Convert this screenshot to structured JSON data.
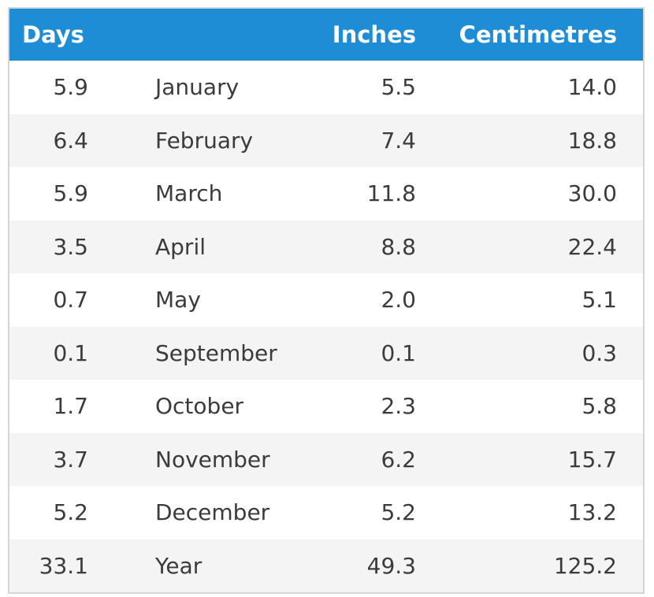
{
  "table": {
    "columns": [
      {
        "label": "Days"
      },
      {
        "label": ""
      },
      {
        "label": "Inches"
      },
      {
        "label": "Centimetres"
      }
    ],
    "rows": [
      {
        "days": "5.9",
        "month": "January",
        "inches": "5.5",
        "centimetres": "14.0"
      },
      {
        "days": "6.4",
        "month": "February",
        "inches": "7.4",
        "centimetres": "18.8"
      },
      {
        "days": "5.9",
        "month": "March",
        "inches": "11.8",
        "centimetres": "30.0"
      },
      {
        "days": "3.5",
        "month": "April",
        "inches": "8.8",
        "centimetres": "22.4"
      },
      {
        "days": "0.7",
        "month": "May",
        "inches": "2.0",
        "centimetres": "5.1"
      },
      {
        "days": "0.1",
        "month": "September",
        "inches": "0.1",
        "centimetres": "0.3"
      },
      {
        "days": "1.7",
        "month": "October",
        "inches": "2.3",
        "centimetres": "5.8"
      },
      {
        "days": "3.7",
        "month": "November",
        "inches": "6.2",
        "centimetres": "15.7"
      },
      {
        "days": "5.2",
        "month": "December",
        "inches": "5.2",
        "centimetres": "13.2"
      },
      {
        "days": "33.1",
        "month": "Year",
        "inches": "49.3",
        "centimetres": "125.2"
      }
    ]
  },
  "chart_data": {
    "type": "table",
    "columns": [
      "Days",
      "",
      "Inches",
      "Centimetres"
    ],
    "rows": [
      [
        "5.9",
        "January",
        "5.5",
        "14.0"
      ],
      [
        "6.4",
        "February",
        "7.4",
        "18.8"
      ],
      [
        "5.9",
        "March",
        "11.8",
        "30.0"
      ],
      [
        "3.5",
        "April",
        "8.8",
        "22.4"
      ],
      [
        "0.7",
        "May",
        "2.0",
        "5.1"
      ],
      [
        "0.1",
        "September",
        "0.1",
        "0.3"
      ],
      [
        "1.7",
        "October",
        "2.3",
        "5.8"
      ],
      [
        "3.7",
        "November",
        "6.2",
        "15.7"
      ],
      [
        "5.2",
        "December",
        "5.2",
        "13.2"
      ],
      [
        "33.1",
        "Year",
        "49.3",
        "125.2"
      ]
    ]
  },
  "colors": {
    "header_bg": "#1f8dd6",
    "header_text": "#ffffff",
    "row_bg": "#ffffff",
    "row_alt_bg": "#f4f4f5",
    "text": "#3b3b3b",
    "border": "#d5d5d5"
  }
}
